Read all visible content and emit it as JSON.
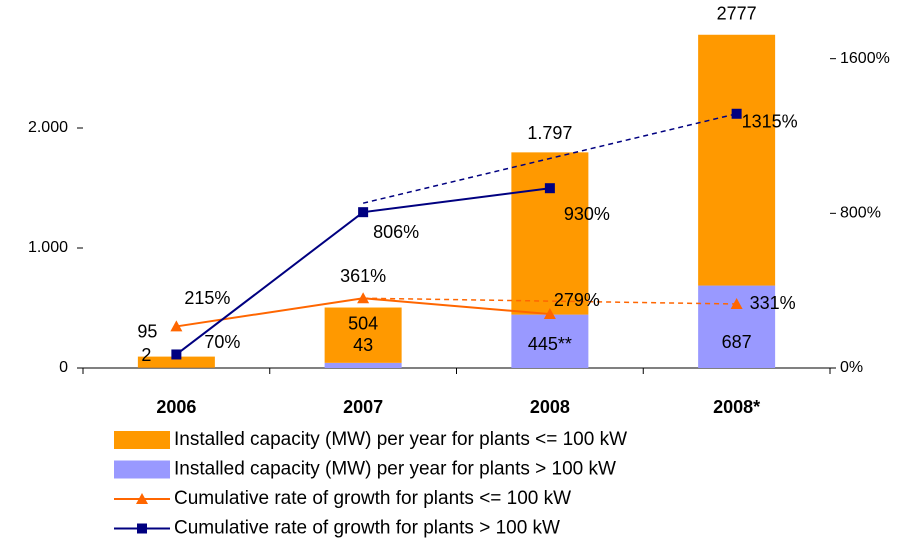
{
  "chart_data": {
    "type": "bar-line",
    "categories": [
      "2006",
      "2007",
      "2008",
      "2008*"
    ],
    "series": [
      {
        "name": "Installed capacity (MW) per year for plants <= 100 kW",
        "type": "bar",
        "color": "#ff9900",
        "values": [
          93,
          461,
          1352,
          2090
        ]
      },
      {
        "name": "Installed capacity (MW) per year for plants > 100 kW",
        "type": "bar",
        "color": "#9999ff",
        "values": [
          2,
          43,
          445,
          687
        ],
        "value_labels": [
          "2",
          "43",
          "445**",
          "687"
        ]
      },
      {
        "name": "Cumulative rate of growth for plants <= 100 kW",
        "type": "line",
        "axis": "y2",
        "color": "#ff6600",
        "marker": "triangle",
        "values": [
          215,
          361,
          279,
          331
        ],
        "value_labels": [
          "215%",
          "361%",
          "279%",
          "331%"
        ],
        "dashed_segment": [
          1,
          3
        ]
      },
      {
        "name": "Cumulative rate of growth for plants > 100 kW",
        "type": "line",
        "axis": "y2",
        "color": "#000080",
        "marker": "square",
        "values": [
          70,
          806,
          930,
          1315
        ],
        "value_labels": [
          "70%",
          "806%",
          "930%",
          "1315%"
        ],
        "dashed_segment": [
          1,
          3
        ]
      }
    ],
    "totals": [
      95,
      504,
      1797,
      2777
    ],
    "total_labels": [
      "95",
      "504",
      "1.797",
      "2777"
    ],
    "ylim": [
      0,
      2900
    ],
    "yticks": [
      0,
      {
        "value": 1000,
        "label": "1.000"
      },
      {
        "value": 2000,
        "label": "2.000"
      }
    ],
    "y2lim": [
      0,
      1800
    ],
    "y2ticks": [
      {
        "value": 0,
        "label": "0%"
      },
      {
        "value": 800,
        "label": "800%"
      },
      {
        "value": 1600,
        "label": "1600%"
      }
    ],
    "legend": "bottom"
  }
}
